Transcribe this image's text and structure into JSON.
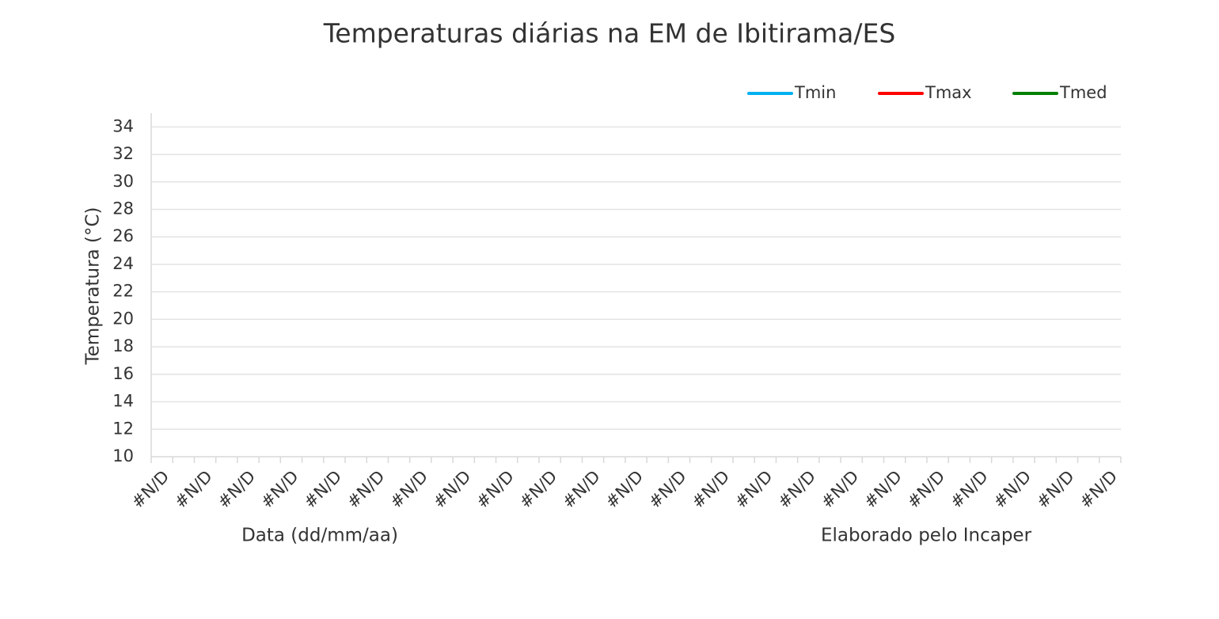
{
  "chart_data": {
    "type": "line",
    "title": "Temperaturas diárias na EM de Ibitirama/ES",
    "ylabel": "Temperatura (°C)",
    "xlabel": "Data (dd/mm/aa)",
    "annotation": "Elaborado pelo Incaper",
    "categories": [
      "#N/D",
      null,
      "#N/D",
      null,
      "#N/D",
      null,
      "#N/D",
      null,
      "#N/D",
      null,
      "#N/D",
      null,
      "#N/D",
      null,
      "#N/D",
      null,
      "#N/D",
      null,
      "#N/D",
      null,
      "#N/D",
      null,
      "#N/D",
      null,
      "#N/D",
      null,
      "#N/D",
      null,
      "#N/D",
      null,
      "#N/D",
      null,
      "#N/D",
      null,
      "#N/D",
      null,
      "#N/D",
      null,
      "#N/D",
      null,
      "#N/D",
      null,
      "#N/D",
      null,
      "#N/D"
    ],
    "series": [
      {
        "name": "Tmin",
        "color": "#00b0f0",
        "values": [
          null,
          null,
          null,
          null,
          null,
          null,
          null,
          null,
          null,
          null,
          null,
          null,
          null,
          null,
          null,
          null,
          null,
          null,
          null,
          null,
          null,
          null,
          null,
          null,
          null,
          null,
          null,
          null,
          null,
          null,
          null,
          null,
          null,
          null,
          null,
          null,
          null,
          null,
          null,
          null,
          null,
          null,
          null,
          null,
          null
        ]
      },
      {
        "name": "Tmax",
        "color": "#ff0000",
        "values": [
          null,
          null,
          null,
          null,
          null,
          null,
          null,
          null,
          null,
          null,
          null,
          null,
          null,
          null,
          null,
          null,
          null,
          null,
          null,
          null,
          null,
          null,
          null,
          null,
          null,
          null,
          null,
          null,
          null,
          null,
          null,
          null,
          null,
          null,
          null,
          null,
          null,
          null,
          null,
          null,
          null,
          null,
          null,
          null,
          null
        ]
      },
      {
        "name": "Tmed",
        "color": "#008000",
        "values": [
          null,
          null,
          null,
          null,
          null,
          null,
          null,
          null,
          null,
          null,
          null,
          null,
          null,
          null,
          null,
          null,
          null,
          null,
          null,
          null,
          null,
          null,
          null,
          null,
          null,
          null,
          null,
          null,
          null,
          null,
          null,
          null,
          null,
          null,
          null,
          null,
          null,
          null,
          null,
          null,
          null,
          null,
          null,
          null,
          null
        ]
      }
    ],
    "ylim": [
      10,
      35
    ],
    "yticks": [
      10,
      12,
      14,
      16,
      18,
      20,
      22,
      24,
      26,
      28,
      30,
      32,
      34
    ],
    "grid": true,
    "legend": "top-right"
  }
}
